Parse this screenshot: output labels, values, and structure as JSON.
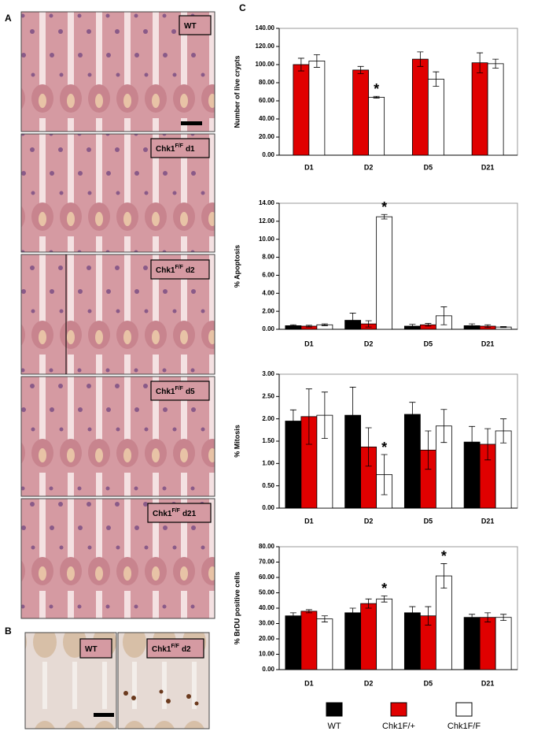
{
  "panel_labels": {
    "a": "A",
    "b": "B",
    "c": "C"
  },
  "image_labels": [
    {
      "text": "WT"
    },
    {
      "text": "Chk1",
      "sup": "F/F",
      "suffix": "d1"
    },
    {
      "text": "Chk1",
      "sup": "F/F",
      "suffix": "d2"
    },
    {
      "text": "Chk1",
      "sup": "F/F",
      "suffix": "d5"
    },
    {
      "text": "Chk1",
      "sup": "F/F",
      "suffix": "d21"
    },
    {
      "text": "WT"
    },
    {
      "text": "Chk1",
      "sup": "F/F",
      "suffix": "d2"
    }
  ],
  "chart_data": [
    {
      "type": "bar",
      "y_label": "Number of live crypts",
      "categories": [
        "D1",
        "D2",
        "D5",
        "D21"
      ],
      "series": [
        {
          "color": "#e00000",
          "values": [
            100,
            94,
            106,
            102
          ],
          "errors": [
            7,
            4,
            8,
            11
          ]
        },
        {
          "color": "#ffffff",
          "values": [
            104,
            64,
            84,
            101
          ],
          "errors": [
            7,
            1,
            8,
            5
          ]
        }
      ],
      "ylim": [
        0,
        140
      ],
      "yticks": [
        {
          "value": 0,
          "label": "0.00"
        },
        {
          "value": 20,
          "label": "20.00"
        },
        {
          "value": 40,
          "label": "40.00"
        },
        {
          "value": 60,
          "label": "60.00"
        },
        {
          "value": 80,
          "label": "80.00"
        },
        {
          "value": 100,
          "label": "100.00"
        },
        {
          "value": 120,
          "label": "120.00"
        },
        {
          "value": 140,
          "label": "140.00"
        }
      ],
      "annotations": [
        {
          "text": "*",
          "category": 1,
          "series": 1
        }
      ]
    },
    {
      "type": "bar",
      "y_label": "% Apoptosis",
      "categories": [
        "D1",
        "D2",
        "D5",
        "D21"
      ],
      "series": [
        {
          "color": "#000000",
          "values": [
            0.4,
            1.0,
            0.35,
            0.4
          ],
          "errors": [
            0.1,
            0.8,
            0.2,
            0.2
          ]
        },
        {
          "color": "#e00000",
          "values": [
            0.35,
            0.6,
            0.5,
            0.35
          ],
          "errors": [
            0.1,
            0.35,
            0.15,
            0.15
          ]
        },
        {
          "color": "#ffffff",
          "values": [
            0.5,
            12.5,
            1.5,
            0.25
          ],
          "errors": [
            0.1,
            0.25,
            1.0,
            0.05
          ]
        }
      ],
      "ylim": [
        0,
        14
      ],
      "yticks": [
        {
          "value": 0,
          "label": "0.00"
        },
        {
          "value": 2,
          "label": "2.00"
        },
        {
          "value": 4,
          "label": "4.00"
        },
        {
          "value": 6,
          "label": "6.00"
        },
        {
          "value": 8,
          "label": "8.00"
        },
        {
          "value": 10,
          "label": "10.00"
        },
        {
          "value": 12,
          "label": "12.00"
        },
        {
          "value": 14,
          "label": "14.00"
        }
      ],
      "annotations": [
        {
          "text": "*",
          "category": 1,
          "series": 2
        }
      ]
    },
    {
      "type": "bar",
      "y_label": "% Mitosis",
      "categories": [
        "D1",
        "D2",
        "D5",
        "D21"
      ],
      "series": [
        {
          "color": "#000000",
          "values": [
            1.95,
            2.08,
            2.1,
            1.48
          ],
          "errors": [
            0.25,
            0.63,
            0.27,
            0.35
          ]
        },
        {
          "color": "#e00000",
          "values": [
            2.05,
            1.37,
            1.3,
            1.43
          ],
          "errors": [
            0.62,
            0.43,
            0.43,
            0.35
          ]
        },
        {
          "color": "#ffffff",
          "values": [
            2.08,
            0.75,
            1.84,
            1.73
          ],
          "errors": [
            0.52,
            0.45,
            0.37,
            0.27
          ]
        }
      ],
      "ylim": [
        0,
        3
      ],
      "yticks": [
        {
          "value": 0,
          "label": "0.00"
        },
        {
          "value": 0.5,
          "label": "0.50"
        },
        {
          "value": 1,
          "label": "1.00"
        },
        {
          "value": 1.5,
          "label": "1.50"
        },
        {
          "value": 2,
          "label": "2.00"
        },
        {
          "value": 2.5,
          "label": "2.50"
        },
        {
          "value": 3,
          "label": "3.00"
        }
      ],
      "annotations": [
        {
          "text": "*",
          "category": 1,
          "series": 2
        }
      ]
    },
    {
      "type": "bar",
      "y_label": "% BrDU positive cells",
      "categories": [
        "D1",
        "D2",
        "D5",
        "D21"
      ],
      "series": [
        {
          "name": "WT",
          "color": "#000000",
          "values": [
            35,
            37,
            37,
            34
          ],
          "errors": [
            2,
            3,
            4,
            2
          ]
        },
        {
          "name": "Chk1F/+",
          "color": "#e00000",
          "values": [
            38,
            43,
            35,
            34
          ],
          "errors": [
            1,
            3,
            6,
            3
          ]
        },
        {
          "name": "Chk1F/F",
          "color": "#ffffff",
          "values": [
            33,
            46,
            61,
            34
          ],
          "errors": [
            2,
            2,
            8,
            2
          ]
        }
      ],
      "ylim": [
        0,
        80
      ],
      "yticks": [
        {
          "value": 0,
          "label": "0.00"
        },
        {
          "value": 10,
          "label": "10.00"
        },
        {
          "value": 20,
          "label": "20.00"
        },
        {
          "value": 30,
          "label": "30.00"
        },
        {
          "value": 40,
          "label": "40.00"
        },
        {
          "value": 50,
          "label": "50.00"
        },
        {
          "value": 60,
          "label": "60.00"
        },
        {
          "value": 70,
          "label": "70.00"
        },
        {
          "value": 80,
          "label": "80.00"
        }
      ],
      "annotations": [
        {
          "text": "*",
          "category": 1,
          "series": 2
        },
        {
          "text": "*",
          "category": 2,
          "series": 2
        }
      ],
      "legend": "bottom"
    }
  ]
}
